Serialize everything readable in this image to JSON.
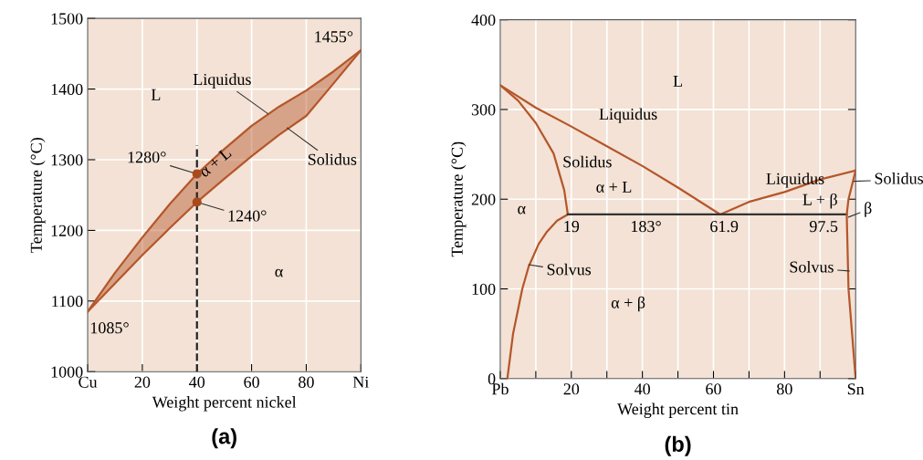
{
  "chart_data": [
    {
      "type": "line",
      "title": "(a)",
      "xlabel": "Weight percent nickel",
      "ylabel": "Temperature (°C)",
      "xlim": [
        0,
        100
      ],
      "ylim": [
        1000,
        1500
      ],
      "xticks": [
        {
          "value": 0,
          "label": "Cu"
        },
        20,
        40,
        60,
        80,
        {
          "value": 100,
          "label": "Ni"
        }
      ],
      "yticks": [
        1000,
        1100,
        1200,
        1300,
        1400,
        1500
      ],
      "grid": true,
      "legend": false,
      "series": [
        {
          "x": [
            0,
            10,
            20,
            30,
            40,
            50,
            60,
            70,
            80,
            90,
            100
          ],
          "values": [
            1085,
            1140,
            1190,
            1237,
            1280,
            1315,
            1348,
            1375,
            1398,
            1425,
            1455
          ],
          "upper": [
            1085,
            1140,
            1190,
            1237,
            1280,
            1315,
            1348,
            1375,
            1398,
            1425,
            1455
          ],
          "lower": [
            1085,
            1125,
            1165,
            1203,
            1240,
            1273,
            1305,
            1335,
            1362,
            1408,
            1455
          ],
          "color": "#b5562a"
        },
        {
          "x": [
            40,
            40
          ],
          "values": [
            1000,
            1320
          ],
          "color": "#222222",
          "line_style": "dashed"
        },
        {
          "type": "scatter",
          "x": [
            40,
            40
          ],
          "values": [
            1280,
            1240
          ],
          "color": "#a84a1c",
          "marker": "circle"
        }
      ],
      "annotations": [
        "L",
        {
          "text": "α + L",
          "x": 47,
          "y": 1295
        },
        "α",
        {
          "text": "Liquidus",
          "x": 66,
          "y": 1365
        },
        {
          "text": "Solidus",
          "x": 73,
          "y": 1345
        },
        "1455°",
        {
          "text": "1280°",
          "x": 40,
          "y": 1280
        },
        {
          "text": "1240°",
          "x": 40,
          "y": 1240
        },
        "1085°"
      ]
    },
    {
      "type": "line",
      "title": "(b)",
      "xlabel": "Weight percent tin",
      "ylabel": "Temperature (°C)",
      "xlim": [
        0,
        100
      ],
      "ylim": [
        0,
        400
      ],
      "xticks": [
        {
          "value": 0,
          "label": "Pb"
        },
        {
          "value": 10,
          "label": null
        },
        20,
        {
          "value": 30,
          "label": null
        },
        40,
        {
          "value": 50,
          "label": null
        },
        60,
        {
          "value": 70,
          "label": null
        },
        80,
        {
          "value": 90,
          "label": null
        },
        {
          "value": 100,
          "label": "Sn"
        }
      ],
      "yticks": [
        0,
        100,
        200,
        300,
        400
      ],
      "grid": true,
      "legend": false,
      "series": [
        {
          "x": [
            0,
            10,
            20,
            30,
            40,
            50,
            61.9,
            70,
            80,
            90,
            100
          ],
          "values": [
            327,
            302,
            281,
            259,
            237,
            213,
            183,
            197,
            208,
            222,
            232
          ],
          "color": "#b5562a"
        },
        {
          "x": [
            0,
            5,
            10,
            15,
            18,
            19,
            16,
            13,
            10.8,
            8,
            6.2,
            3.6,
            2
          ],
          "values": [
            327,
            310,
            285,
            251,
            210,
            183,
            176,
            163,
            150,
            125,
            100,
            50,
            0
          ],
          "color": "#b5562a"
        },
        {
          "x": [
            19,
            97.5
          ],
          "values": [
            183,
            183
          ],
          "color": "#333333"
        },
        {
          "x": [
            100,
            98,
            97.5,
            98,
            99,
            100
          ],
          "values": [
            232,
            200,
            183,
            100,
            50,
            0
          ],
          "color": "#b5562a"
        }
      ],
      "annotations": [
        "L",
        "Liquidus",
        "Solidus",
        "α + L",
        "α",
        "19",
        "183°",
        "61.9",
        "97.5",
        "Liquidus",
        "L + β",
        {
          "text": "Solidus",
          "x": 99.5,
          "y": 220
        },
        {
          "text": "β",
          "x": 98,
          "y": 180
        },
        {
          "text": "Solvus",
          "x": 8,
          "y": 127
        },
        {
          "text": "Solvus",
          "x": 98.2,
          "y": 120
        },
        "α + β"
      ]
    }
  ]
}
